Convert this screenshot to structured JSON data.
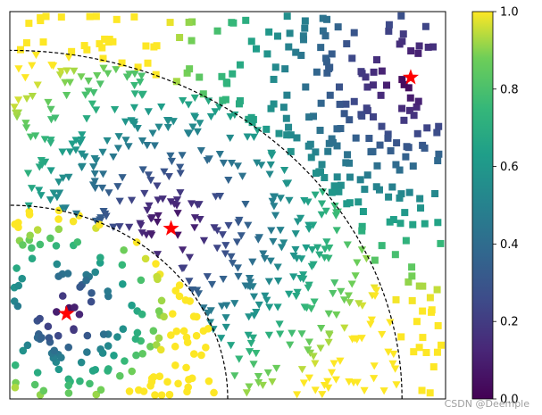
{
  "chart_data": {
    "type": "scatter",
    "title": "",
    "xlabel": "",
    "ylabel": "",
    "xlim": [
      0,
      1
    ],
    "ylim": [
      0,
      1
    ],
    "axis_ticks_visible": false,
    "grid": false,
    "colormap": "viridis",
    "colorbar": {
      "vmin": 0.0,
      "vmax": 1.0,
      "ticks": [
        "0.0",
        "0.2",
        "0.4",
        "0.6",
        "0.8",
        "1.0"
      ]
    },
    "marker_groups": [
      {
        "marker": "circle",
        "region": "inner quarter-disc around lower-left centroid"
      },
      {
        "marker": "triangle-down",
        "region": "annulus around central centroid"
      },
      {
        "marker": "square",
        "region": "outer region around upper-right centroid"
      }
    ],
    "centroids": [
      {
        "x": 0.13,
        "y": 0.22,
        "marker": "star",
        "color": "#ff0000"
      },
      {
        "x": 0.37,
        "y": 0.44,
        "marker": "star",
        "color": "#ff0000"
      },
      {
        "x": 0.92,
        "y": 0.83,
        "marker": "star",
        "color": "#ff0000"
      }
    ],
    "boundaries": [
      {
        "type": "quarter-circle",
        "center": [
          0,
          0
        ],
        "radius": 0.5,
        "style": "dashed",
        "color": "#000000"
      },
      {
        "type": "quarter-circle",
        "center": [
          0,
          0
        ],
        "radius": 0.9,
        "style": "dashed",
        "color": "#000000"
      }
    ]
  },
  "watermark": "CSDN @Deemple"
}
